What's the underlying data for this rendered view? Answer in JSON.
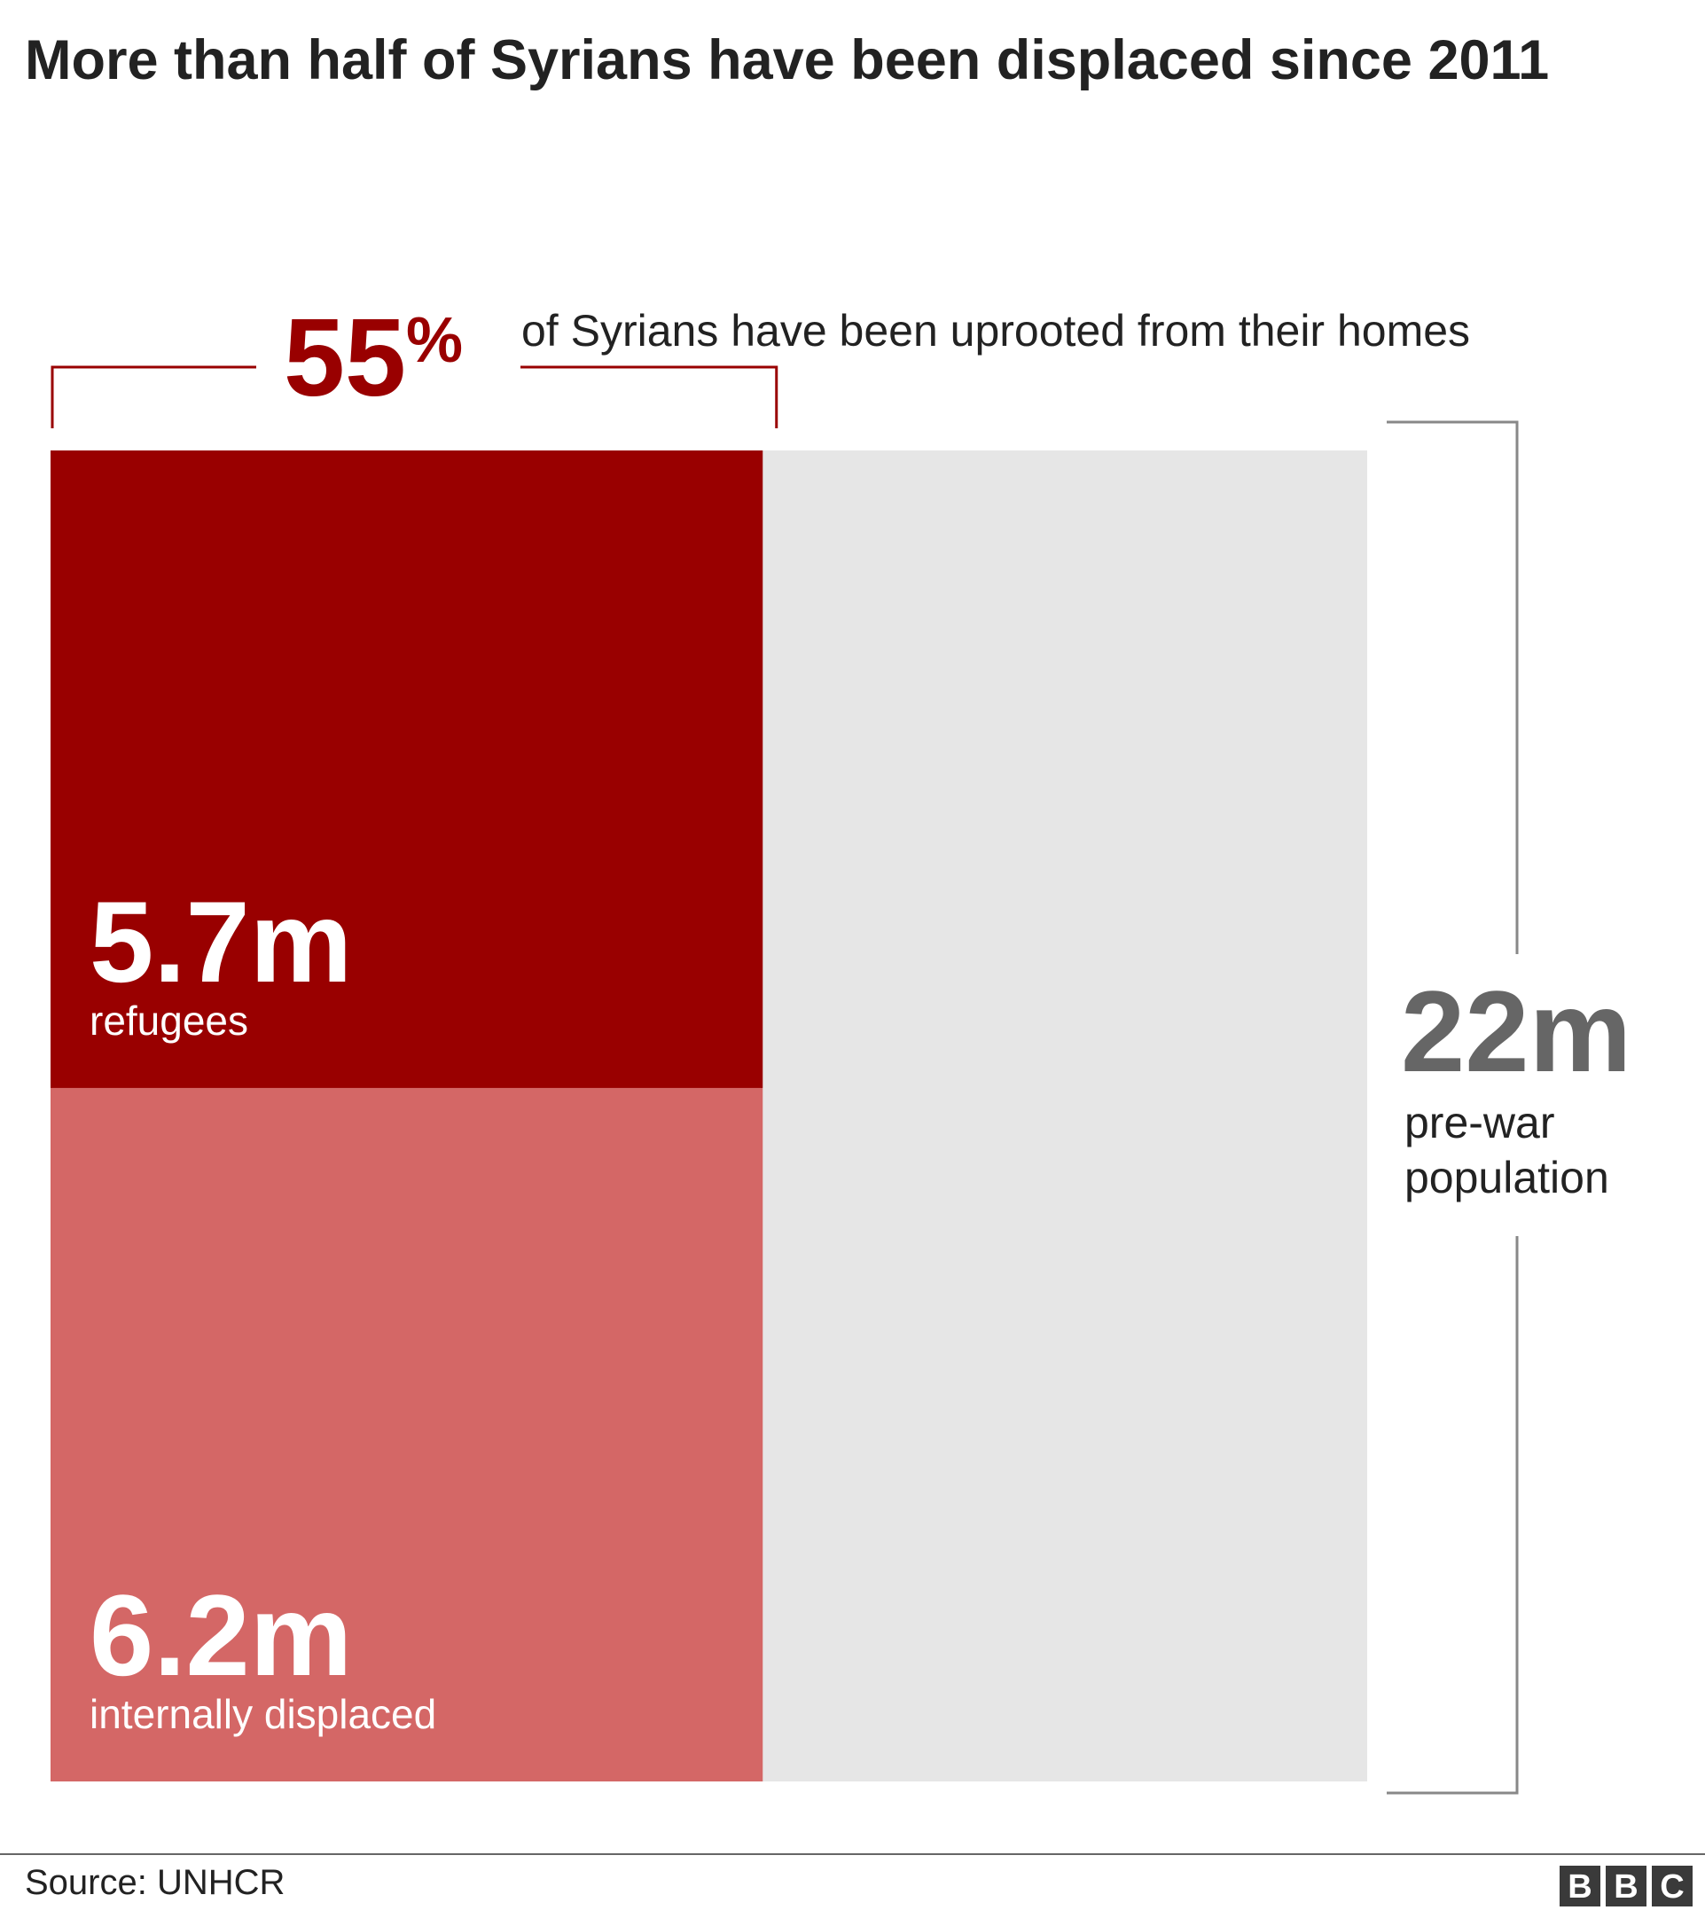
{
  "chart_data": {
    "type": "proportional-area",
    "title": "More than half of Syrians have been displaced since 2011",
    "percent": {
      "value": 55,
      "label": "55",
      "unit": "%"
    },
    "percent_text": "of Syrians have been uprooted from their homes",
    "total": {
      "value": 22,
      "label": "22m",
      "name_lines": [
        "pre-war",
        "population"
      ],
      "color": "#e6e6e6"
    },
    "series": [
      {
        "name": "refugees",
        "values": [
          5.7
        ],
        "value_labels": [
          "5.7m"
        ],
        "color": "#990000"
      },
      {
        "name": "internally displaced",
        "values": [
          6.2
        ],
        "value_labels": [
          "6.2m"
        ],
        "color": "#d46766"
      }
    ]
  },
  "source": "Source: UNHCR",
  "logo": [
    "B",
    "B",
    "C"
  ]
}
